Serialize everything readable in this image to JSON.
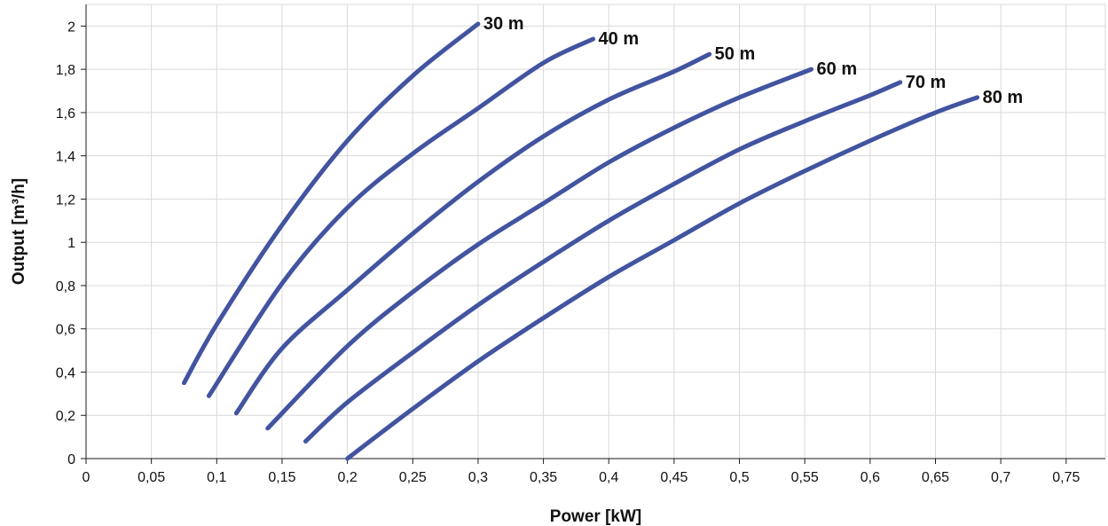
{
  "chart_data": {
    "type": "line",
    "title": "",
    "xlabel": "Power [kW]",
    "ylabel": "Output [m³/h]",
    "xlim": [
      0,
      0.78
    ],
    "ylim": [
      0,
      2.1
    ],
    "grid": true,
    "line_color": "#4254a0",
    "x_ticks": [
      {
        "value": 0,
        "label": "0"
      },
      {
        "value": 0.05,
        "label": "0,05"
      },
      {
        "value": 0.1,
        "label": "0,1"
      },
      {
        "value": 0.15,
        "label": "0,15"
      },
      {
        "value": 0.2,
        "label": "0,2"
      },
      {
        "value": 0.25,
        "label": "0,25"
      },
      {
        "value": 0.3,
        "label": "0,3"
      },
      {
        "value": 0.35,
        "label": "0,35"
      },
      {
        "value": 0.4,
        "label": "0,4"
      },
      {
        "value": 0.45,
        "label": "0,45"
      },
      {
        "value": 0.5,
        "label": "0,5"
      },
      {
        "value": 0.55,
        "label": "0,55"
      },
      {
        "value": 0.6,
        "label": "0,6"
      },
      {
        "value": 0.65,
        "label": "0,65"
      },
      {
        "value": 0.7,
        "label": "0,7"
      },
      {
        "value": 0.75,
        "label": "0,75"
      }
    ],
    "y_ticks": [
      {
        "value": 0,
        "label": "0"
      },
      {
        "value": 0.2,
        "label": "0,2"
      },
      {
        "value": 0.4,
        "label": "0,4"
      },
      {
        "value": 0.6,
        "label": "0,6"
      },
      {
        "value": 0.8,
        "label": "0,8"
      },
      {
        "value": 1,
        "label": "1"
      },
      {
        "value": 1.2,
        "label": "1,2"
      },
      {
        "value": 1.4,
        "label": "1,4"
      },
      {
        "value": 1.6,
        "label": "1,6"
      },
      {
        "value": 1.8,
        "label": "1,8"
      },
      {
        "value": 2,
        "label": "2"
      }
    ],
    "series": [
      {
        "name": "30 m",
        "x": [
          0.075,
          0.1,
          0.15,
          0.2,
          0.25,
          0.3
        ],
        "y": [
          0.35,
          0.62,
          1.08,
          1.47,
          1.77,
          2.01
        ]
      },
      {
        "name": "40 m",
        "x": [
          0.094,
          0.15,
          0.2,
          0.25,
          0.3,
          0.35,
          0.388
        ],
        "y": [
          0.29,
          0.81,
          1.16,
          1.41,
          1.62,
          1.83,
          1.94
        ]
      },
      {
        "name": "50 m",
        "x": [
          0.115,
          0.15,
          0.2,
          0.25,
          0.3,
          0.35,
          0.4,
          0.45,
          0.477
        ],
        "y": [
          0.21,
          0.51,
          0.78,
          1.04,
          1.28,
          1.49,
          1.66,
          1.79,
          1.87
        ]
      },
      {
        "name": "60 m",
        "x": [
          0.139,
          0.2,
          0.25,
          0.3,
          0.35,
          0.4,
          0.45,
          0.5,
          0.555
        ],
        "y": [
          0.14,
          0.52,
          0.77,
          0.99,
          1.18,
          1.37,
          1.53,
          1.67,
          1.8
        ]
      },
      {
        "name": "70 m",
        "x": [
          0.168,
          0.2,
          0.25,
          0.3,
          0.35,
          0.4,
          0.45,
          0.5,
          0.55,
          0.6,
          0.623
        ],
        "y": [
          0.08,
          0.26,
          0.49,
          0.71,
          0.91,
          1.1,
          1.27,
          1.43,
          1.56,
          1.68,
          1.74
        ]
      },
      {
        "name": "80 m",
        "x": [
          0.2,
          0.25,
          0.3,
          0.35,
          0.4,
          0.45,
          0.5,
          0.55,
          0.6,
          0.65,
          0.682
        ],
        "y": [
          0.0,
          0.23,
          0.45,
          0.65,
          0.84,
          1.01,
          1.18,
          1.33,
          1.47,
          1.6,
          1.67
        ]
      }
    ]
  }
}
